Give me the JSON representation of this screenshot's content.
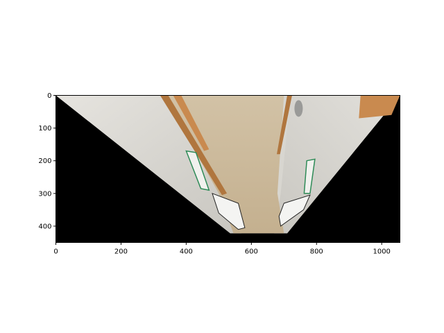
{
  "chart_data": {
    "type": "image",
    "title": "",
    "xlabel": "",
    "ylabel": "",
    "xlim": [
      0,
      1056
    ],
    "ylim": [
      450,
      0
    ],
    "x_ticks": [
      0,
      200,
      400,
      600,
      800,
      1000
    ],
    "y_ticks": [
      0,
      100,
      200,
      300,
      400
    ],
    "grid": false,
    "legend": "none",
    "image_content": "warped bird's-eye view of a hallway floor; black region outside the trapezoid",
    "valid_region": [
      [
        0,
        0
      ],
      [
        1056,
        0
      ],
      [
        710,
        422
      ],
      [
        535,
        422
      ]
    ],
    "colors": {
      "outside": "#000000",
      "floor": "#c9b79a",
      "wall": "#d8d6d0",
      "door_frame": "#b0763e",
      "sign": "#2e8b57"
    }
  }
}
